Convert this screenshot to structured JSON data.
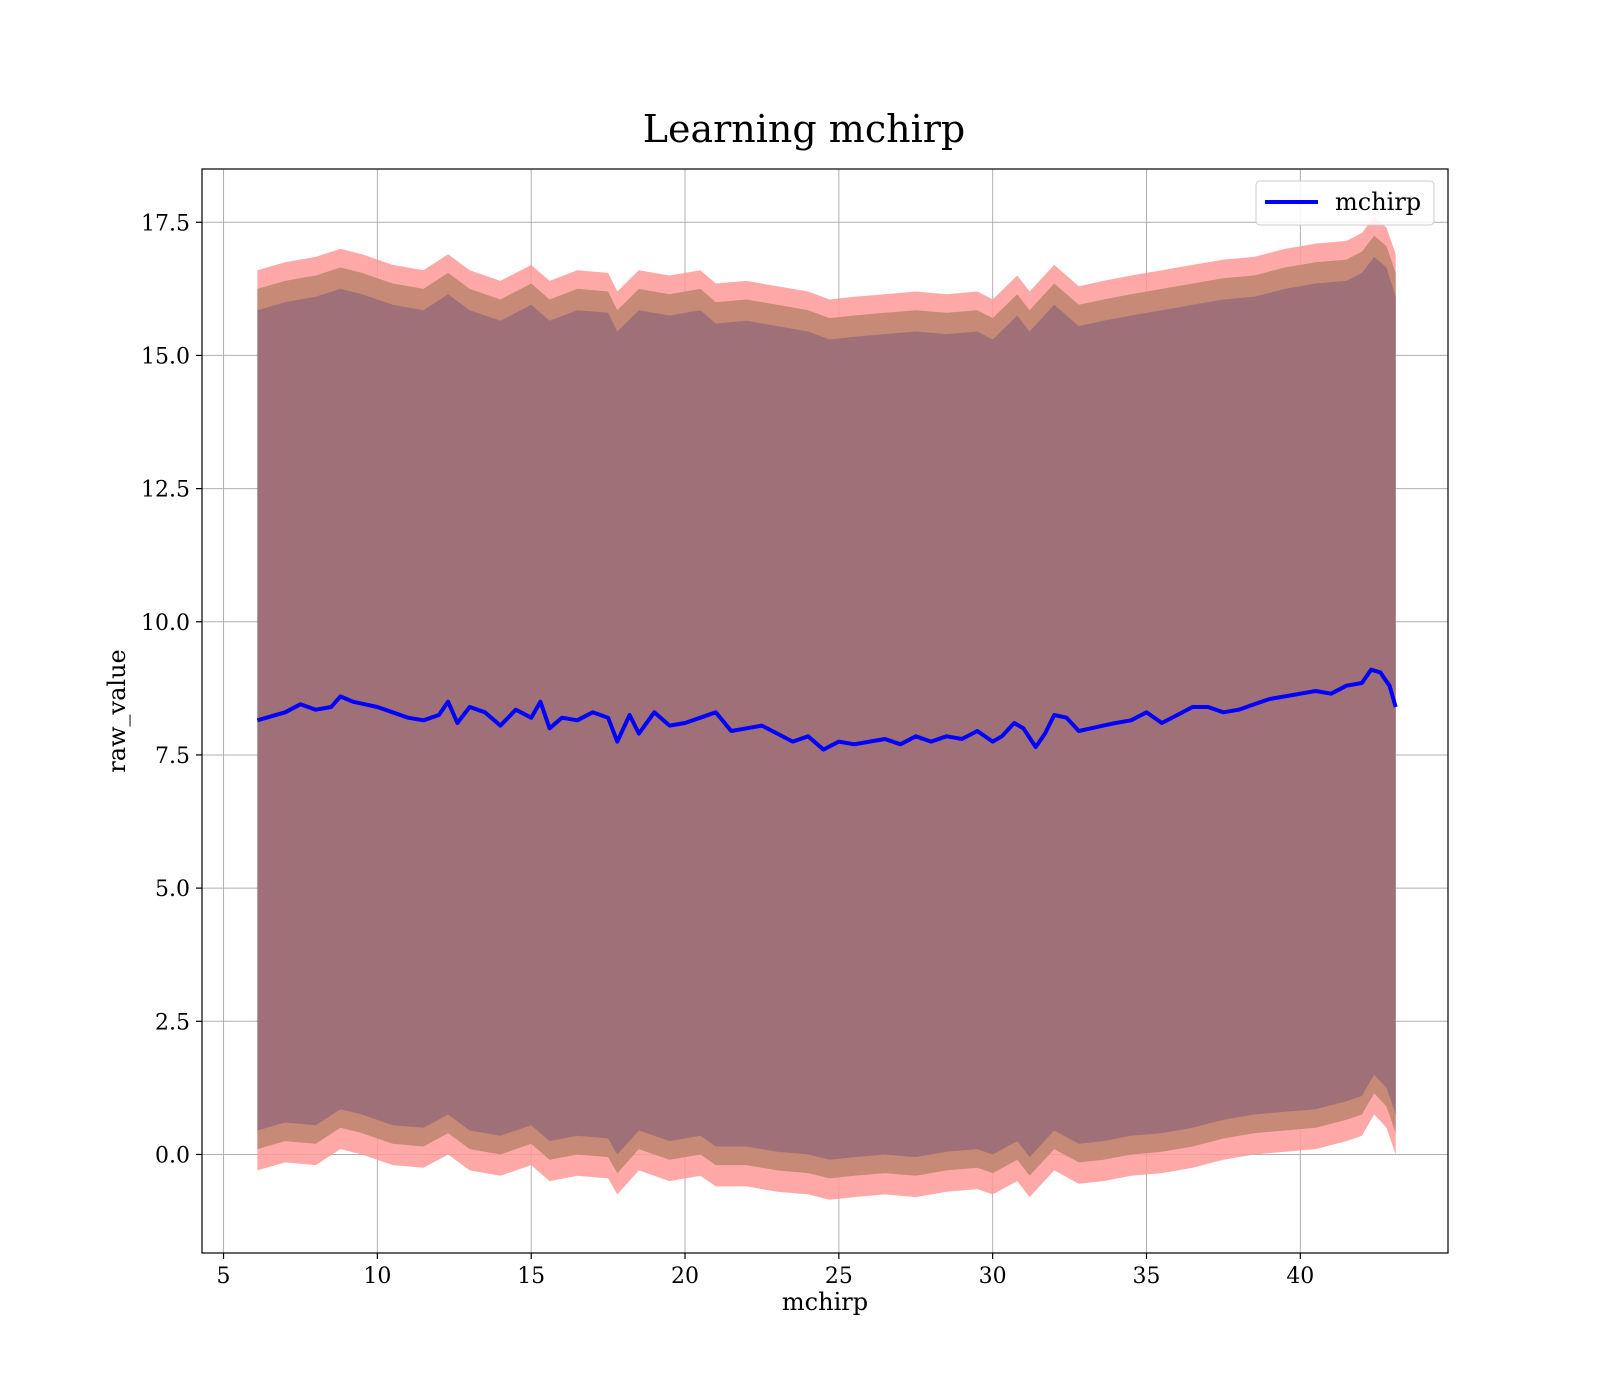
{
  "chart_data": {
    "type": "area",
    "title": "Learning mchirp",
    "xlabel": "mchirp",
    "ylabel": "raw_value",
    "xlim": [
      4.3,
      44.8
    ],
    "ylim": [
      -1.85,
      18.5
    ],
    "xticks": [
      5,
      10,
      15,
      20,
      25,
      30,
      35,
      40
    ],
    "xtick_labels": [
      "5",
      "10",
      "15",
      "20",
      "25",
      "30",
      "35",
      "40"
    ],
    "yticks": [
      0.0,
      2.5,
      5.0,
      7.5,
      10.0,
      12.5,
      15.0,
      17.5
    ],
    "ytick_labels": [
      "0.0",
      "2.5",
      "5.0",
      "7.5",
      "10.0",
      "12.5",
      "15.0",
      "17.5"
    ],
    "grid": true,
    "legend": {
      "placement": "top-right",
      "entries": [
        "mchirp"
      ]
    },
    "colors": {
      "line": "#0000ff",
      "band_outer": "#ff9999",
      "band_middle": "#c68a76",
      "band_inner": "#a07078",
      "axes": "#000000",
      "grid": "#b0b0b0"
    },
    "series": [
      {
        "name": "mchirp",
        "type": "line",
        "x": [
          6.1,
          7.0,
          7.5,
          8.0,
          8.5,
          8.8,
          9.2,
          9.6,
          10.0,
          10.5,
          11.0,
          11.5,
          12.0,
          12.3,
          12.6,
          13.0,
          13.5,
          14.0,
          14.5,
          15.0,
          15.3,
          15.6,
          16.0,
          16.5,
          17.0,
          17.5,
          17.8,
          18.2,
          18.5,
          19.0,
          19.5,
          20.0,
          20.5,
          21.0,
          21.5,
          22.0,
          22.5,
          23.0,
          23.5,
          24.0,
          24.5,
          25.0,
          25.5,
          26.0,
          26.5,
          27.0,
          27.5,
          28.0,
          28.5,
          29.0,
          29.5,
          30.0,
          30.3,
          30.7,
          31.0,
          31.4,
          31.7,
          32.0,
          32.4,
          32.8,
          33.2,
          33.6,
          34.0,
          34.5,
          35.0,
          35.5,
          36.0,
          36.5,
          37.0,
          37.5,
          38.0,
          38.5,
          39.0,
          39.5,
          40.0,
          40.5,
          41.0,
          41.5,
          42.0,
          42.3,
          42.6,
          42.9,
          43.1
        ],
        "values": [
          8.15,
          8.3,
          8.45,
          8.35,
          8.4,
          8.6,
          8.5,
          8.45,
          8.4,
          8.3,
          8.2,
          8.15,
          8.25,
          8.5,
          8.1,
          8.4,
          8.3,
          8.05,
          8.35,
          8.2,
          8.5,
          8.0,
          8.2,
          8.15,
          8.3,
          8.2,
          7.75,
          8.25,
          7.9,
          8.3,
          8.05,
          8.1,
          8.2,
          8.3,
          7.95,
          8.0,
          8.05,
          7.9,
          7.75,
          7.85,
          7.6,
          7.75,
          7.7,
          7.75,
          7.8,
          7.7,
          7.85,
          7.75,
          7.85,
          7.8,
          7.95,
          7.75,
          7.85,
          8.1,
          8.0,
          7.65,
          7.9,
          8.25,
          8.2,
          7.95,
          8.0,
          8.05,
          8.1,
          8.15,
          8.3,
          8.1,
          8.25,
          8.4,
          8.4,
          8.3,
          8.35,
          8.45,
          8.55,
          8.6,
          8.65,
          8.7,
          8.65,
          8.8,
          8.85,
          9.1,
          9.05,
          8.8,
          8.4
        ]
      },
      {
        "name": "band-outer",
        "type": "band",
        "x": [
          6.1,
          7.0,
          8.0,
          8.8,
          9.5,
          10.5,
          11.5,
          12.3,
          13.0,
          14.0,
          15.0,
          15.6,
          16.5,
          17.5,
          17.8,
          18.5,
          19.5,
          20.5,
          21.0,
          22.0,
          23.0,
          24.0,
          24.7,
          25.5,
          26.5,
          27.5,
          28.5,
          29.5,
          30.0,
          30.8,
          31.2,
          32.0,
          32.8,
          33.6,
          34.5,
          35.5,
          36.5,
          37.5,
          38.5,
          39.5,
          40.5,
          41.5,
          42.0,
          42.4,
          42.8,
          43.1
        ],
        "lower": [
          -0.3,
          -0.15,
          -0.2,
          0.1,
          0.0,
          -0.2,
          -0.25,
          0.0,
          -0.3,
          -0.4,
          -0.2,
          -0.5,
          -0.4,
          -0.45,
          -0.75,
          -0.3,
          -0.5,
          -0.4,
          -0.6,
          -0.6,
          -0.7,
          -0.75,
          -0.85,
          -0.8,
          -0.75,
          -0.8,
          -0.7,
          -0.65,
          -0.75,
          -0.5,
          -0.8,
          -0.3,
          -0.55,
          -0.5,
          -0.4,
          -0.35,
          -0.25,
          -0.1,
          0.0,
          0.05,
          0.1,
          0.25,
          0.35,
          0.75,
          0.5,
          0.0
        ],
        "upper": [
          16.6,
          16.75,
          16.85,
          17.0,
          16.9,
          16.7,
          16.6,
          16.9,
          16.6,
          16.4,
          16.7,
          16.4,
          16.6,
          16.55,
          16.2,
          16.6,
          16.5,
          16.6,
          16.35,
          16.4,
          16.3,
          16.2,
          16.05,
          16.1,
          16.15,
          16.2,
          16.15,
          16.2,
          16.05,
          16.5,
          16.2,
          16.7,
          16.3,
          16.4,
          16.5,
          16.6,
          16.7,
          16.8,
          16.85,
          17.0,
          17.1,
          17.15,
          17.3,
          17.6,
          17.4,
          16.9
        ]
      },
      {
        "name": "band-middle",
        "type": "band",
        "x": [
          6.1,
          7.0,
          8.0,
          8.8,
          9.5,
          10.5,
          11.5,
          12.3,
          13.0,
          14.0,
          15.0,
          15.6,
          16.5,
          17.5,
          17.8,
          18.5,
          19.5,
          20.5,
          21.0,
          22.0,
          23.0,
          24.0,
          24.7,
          25.5,
          26.5,
          27.5,
          28.5,
          29.5,
          30.0,
          30.8,
          31.2,
          32.0,
          32.8,
          33.6,
          34.5,
          35.5,
          36.5,
          37.5,
          38.5,
          39.5,
          40.5,
          41.5,
          42.0,
          42.4,
          42.8,
          43.1
        ],
        "lower": [
          0.1,
          0.25,
          0.2,
          0.5,
          0.4,
          0.2,
          0.15,
          0.4,
          0.1,
          0.0,
          0.2,
          -0.1,
          0.0,
          -0.05,
          -0.35,
          0.1,
          -0.1,
          0.0,
          -0.2,
          -0.2,
          -0.3,
          -0.35,
          -0.45,
          -0.4,
          -0.35,
          -0.4,
          -0.3,
          -0.25,
          -0.35,
          -0.1,
          -0.4,
          0.1,
          -0.15,
          -0.1,
          0.0,
          0.05,
          0.15,
          0.3,
          0.4,
          0.45,
          0.5,
          0.65,
          0.75,
          1.15,
          0.9,
          0.4
        ],
        "upper": [
          16.25,
          16.4,
          16.5,
          16.65,
          16.55,
          16.35,
          16.25,
          16.55,
          16.25,
          16.05,
          16.35,
          16.05,
          16.25,
          16.2,
          15.85,
          16.25,
          16.15,
          16.25,
          16.0,
          16.05,
          15.95,
          15.85,
          15.7,
          15.75,
          15.8,
          15.85,
          15.8,
          15.85,
          15.7,
          16.15,
          15.85,
          16.35,
          15.95,
          16.05,
          16.15,
          16.25,
          16.35,
          16.45,
          16.5,
          16.65,
          16.75,
          16.8,
          16.95,
          17.25,
          17.05,
          16.55
        ]
      },
      {
        "name": "band-inner",
        "type": "band",
        "x": [
          6.1,
          7.0,
          8.0,
          8.8,
          9.5,
          10.5,
          11.5,
          12.3,
          13.0,
          14.0,
          15.0,
          15.6,
          16.5,
          17.5,
          17.8,
          18.5,
          19.5,
          20.5,
          21.0,
          22.0,
          23.0,
          24.0,
          24.7,
          25.5,
          26.5,
          27.5,
          28.5,
          29.5,
          30.0,
          30.8,
          31.2,
          32.0,
          32.8,
          33.6,
          34.5,
          35.5,
          36.5,
          37.5,
          38.5,
          39.5,
          40.5,
          41.5,
          42.0,
          42.4,
          42.8,
          43.1
        ],
        "lower": [
          0.45,
          0.6,
          0.55,
          0.85,
          0.75,
          0.55,
          0.5,
          0.75,
          0.45,
          0.35,
          0.55,
          0.25,
          0.35,
          0.3,
          0.0,
          0.45,
          0.25,
          0.35,
          0.15,
          0.15,
          0.05,
          0.0,
          -0.1,
          -0.05,
          0.0,
          -0.05,
          0.05,
          0.1,
          0.0,
          0.25,
          -0.05,
          0.45,
          0.2,
          0.25,
          0.35,
          0.4,
          0.5,
          0.65,
          0.75,
          0.8,
          0.85,
          1.0,
          1.1,
          1.5,
          1.25,
          0.75
        ],
        "upper": [
          15.85,
          16.0,
          16.1,
          16.25,
          16.15,
          15.95,
          15.85,
          16.15,
          15.85,
          15.65,
          15.95,
          15.65,
          15.85,
          15.8,
          15.45,
          15.85,
          15.75,
          15.85,
          15.6,
          15.65,
          15.55,
          15.45,
          15.3,
          15.35,
          15.4,
          15.45,
          15.4,
          15.45,
          15.3,
          15.75,
          15.45,
          15.95,
          15.55,
          15.65,
          15.75,
          15.85,
          15.95,
          16.05,
          16.1,
          16.25,
          16.35,
          16.4,
          16.55,
          16.85,
          16.65,
          16.1
        ]
      }
    ]
  }
}
